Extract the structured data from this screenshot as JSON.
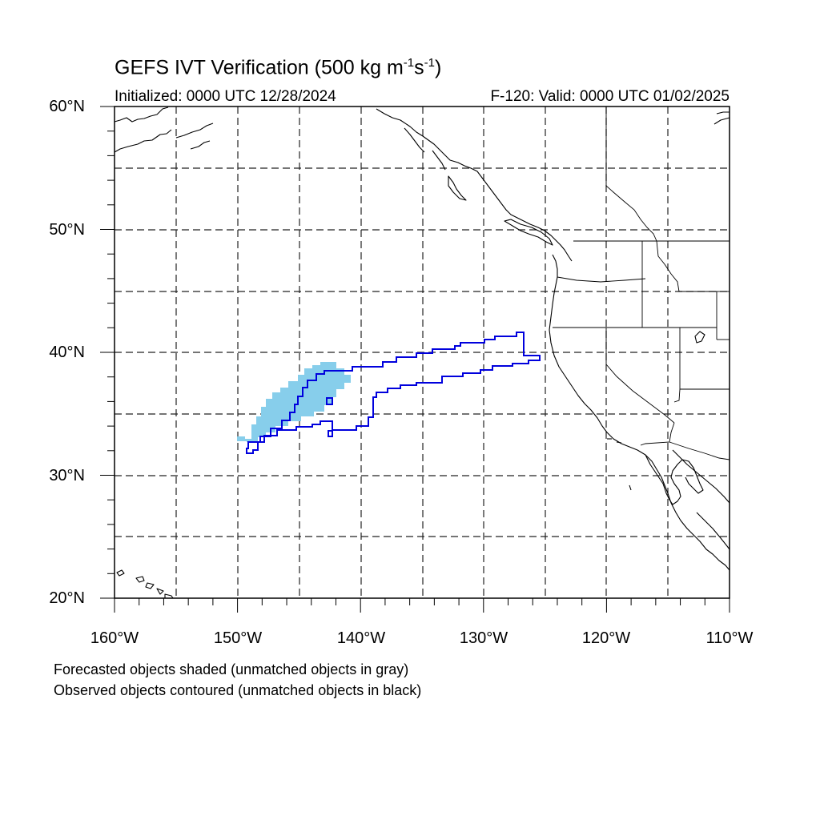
{
  "map": {
    "title_main": "GEFS IVT Verification (500 kg m",
    "title_exp1": "-1",
    "title_mid": "s",
    "title_exp2": "-1",
    "title_end": ")",
    "initialized": "Initialized: 0000 UTC 12/28/2024",
    "valid": "F-120: Valid: 0000 UTC 01/02/2025",
    "lat_labels": [
      "60°N",
      "50°N",
      "40°N",
      "30°N",
      "20°N"
    ],
    "lon_labels": [
      "160°W",
      "150°W",
      "140°W",
      "130°W",
      "120°W",
      "110°W"
    ],
    "legend_line1": "Forecasted objects shaded (unmatched objects in gray)",
    "legend_line2": "Observed objects contoured (unmatched objects in black)",
    "extent": {
      "lon": [
        -160,
        -110
      ],
      "lat": [
        20,
        60
      ]
    },
    "colors": {
      "forecast_fill": "#87ceeb",
      "observed_contour": "#0000dd",
      "coast": "#000000"
    }
  }
}
